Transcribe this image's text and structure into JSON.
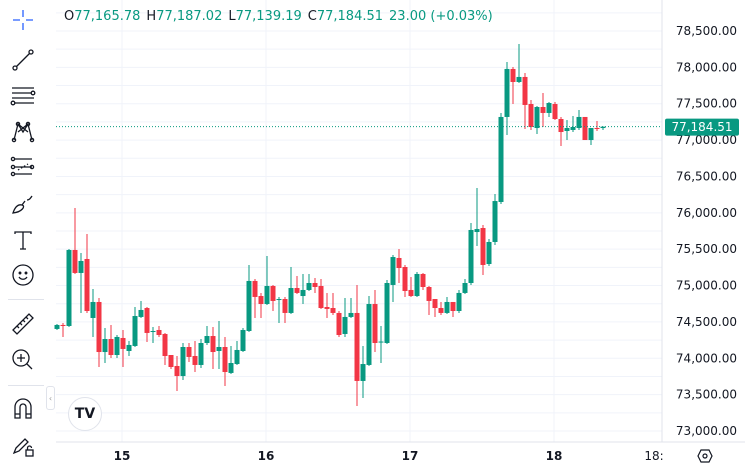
{
  "legend": {
    "o_label": "O",
    "o": "77,165.78",
    "h_label": "H",
    "h": "77,187.02",
    "l_label": "L",
    "l": "77,139.19",
    "c_label": "C",
    "c": "77,184.51",
    "change": "23.00 (+0.03%)"
  },
  "colors": {
    "up": "#089981",
    "down": "#f23645",
    "grid": "#f0f3fa",
    "text": "#131722"
  },
  "toolbar": {
    "items": [
      "crosshair-icon",
      "trend-line-icon",
      "fib-retracement-icon",
      "pattern-icon",
      "forecast-icon",
      "brush-icon",
      "text-icon",
      "emoji-icon",
      "ruler-icon",
      "zoom-in-icon",
      "magnet-icon",
      "lock-drawings-icon"
    ]
  },
  "logo_text": "TV",
  "chart_data": {
    "type": "candlestick",
    "ylim": [
      72850,
      78700
    ],
    "y_ticks": [
      "78,500.00",
      "78,000.00",
      "77,500.00",
      "77,000.00",
      "76,500.00",
      "76,000.00",
      "75,500.00",
      "75,000.00",
      "74,500.00",
      "74,000.00",
      "73,500.00",
      "73,000.00"
    ],
    "y_tick_values": [
      78500,
      78000,
      77500,
      77000,
      76500,
      76000,
      75500,
      75000,
      74500,
      74000,
      73500,
      73000
    ],
    "x_ticks": [
      "15",
      "16",
      "17",
      "18",
      "18:"
    ],
    "interval": "1h",
    "first_candle_offset_hours_before_15": 11,
    "last_price": 77184.51,
    "last_price_label": "77,184.51",
    "ohlc": [
      [
        74403,
        74471,
        74389,
        74458
      ],
      [
        74458,
        74485,
        74293,
        74444
      ],
      [
        74444,
        75502,
        74430,
        75489
      ],
      [
        75489,
        76066,
        75159,
        75173
      ],
      [
        75173,
        75447,
        74623,
        75338
      ],
      [
        75365,
        75709,
        74623,
        74650
      ],
      [
        74554,
        74953,
        74293,
        74774
      ],
      [
        74774,
        74829,
        73880,
        74086
      ],
      [
        74086,
        74416,
        73935,
        74265
      ],
      [
        74265,
        74458,
        74004,
        74045
      ],
      [
        74045,
        74320,
        74004,
        74293
      ],
      [
        74279,
        74389,
        73880,
        74128
      ],
      [
        74100,
        74238,
        74031,
        74183
      ],
      [
        74169,
        74705,
        74155,
        74581
      ],
      [
        74568,
        74788,
        74554,
        74664
      ],
      [
        74691,
        74705,
        74224,
        74348
      ],
      [
        74361,
        74430,
        74210,
        74375
      ],
      [
        74389,
        74444,
        74293,
        74320
      ],
      [
        74334,
        74348,
        73908,
        74031
      ],
      [
        74045,
        74045,
        73853,
        73880
      ],
      [
        73894,
        74031,
        73550,
        73756
      ],
      [
        73756,
        74210,
        73701,
        74155
      ],
      [
        74155,
        74210,
        73948,
        74018
      ],
      [
        74031,
        74238,
        73811,
        73908
      ],
      [
        73908,
        74265,
        73866,
        74210
      ],
      [
        74210,
        74444,
        74183,
        74306
      ],
      [
        74306,
        74430,
        73853,
        74086
      ],
      [
        74100,
        74513,
        73853,
        74155
      ],
      [
        74155,
        74293,
        73619,
        73811
      ],
      [
        73798,
        74169,
        73784,
        73935
      ],
      [
        73921,
        74238,
        73908,
        74114
      ],
      [
        74100,
        74416,
        74086,
        74389
      ],
      [
        74375,
        75283,
        74361,
        75063
      ],
      [
        75063,
        75090,
        74554,
        74843
      ],
      [
        74856,
        74898,
        74554,
        74746
      ],
      [
        74746,
        75406,
        74732,
        74994
      ],
      [
        74994,
        75008,
        74650,
        74788
      ],
      [
        74801,
        74843,
        74485,
        74815
      ],
      [
        74815,
        74843,
        74485,
        74623
      ],
      [
        74623,
        75255,
        74609,
        74966
      ],
      [
        74966,
        75131,
        74884,
        74898
      ],
      [
        74856,
        75159,
        74746,
        74939
      ],
      [
        74939,
        75159,
        74925,
        75035
      ],
      [
        75035,
        75104,
        74898,
        74980
      ],
      [
        74994,
        75090,
        74678,
        74691
      ],
      [
        74705,
        74898,
        74554,
        74678
      ],
      [
        74691,
        74898,
        74595,
        74623
      ],
      [
        74623,
        74650,
        74293,
        74320
      ],
      [
        74334,
        74829,
        74293,
        74568
      ],
      [
        74568,
        74829,
        74554,
        74623
      ],
      [
        74623,
        75008,
        73344,
        73688
      ],
      [
        73688,
        74169,
        73454,
        73921
      ],
      [
        73908,
        74856,
        73894,
        74746
      ],
      [
        74746,
        74939,
        74086,
        74210
      ],
      [
        74224,
        74444,
        73935,
        74230
      ],
      [
        74210,
        75076,
        74196,
        75035
      ],
      [
        75008,
        75420,
        74774,
        75392
      ],
      [
        75379,
        75502,
        75035,
        75241
      ],
      [
        75255,
        75283,
        74843,
        74925
      ],
      [
        74939,
        75118,
        74843,
        74856
      ],
      [
        74856,
        75186,
        74843,
        75159
      ],
      [
        75159,
        75173,
        74939,
        74980
      ],
      [
        74980,
        74994,
        74595,
        74788
      ],
      [
        74815,
        74815,
        74568,
        74691
      ],
      [
        74691,
        74774,
        74595,
        74623
      ],
      [
        74623,
        74843,
        74609,
        74774
      ],
      [
        74774,
        74774,
        74568,
        74650
      ],
      [
        74650,
        74939,
        74623,
        74898
      ],
      [
        74898,
        75090,
        74884,
        75035
      ],
      [
        75035,
        75860,
        75008,
        75764
      ],
      [
        75736,
        76341,
        75544,
        75777
      ],
      [
        75791,
        75832,
        75145,
        75283
      ],
      [
        75296,
        75640,
        75269,
        75599
      ],
      [
        75599,
        76258,
        75557,
        76162
      ],
      [
        76149,
        77373,
        76121,
        77318
      ],
      [
        77318,
        78074,
        77070,
        77978
      ],
      [
        77978,
        78005,
        77496,
        77799
      ],
      [
        77799,
        78321,
        77785,
        77868
      ],
      [
        77868,
        77923,
        77153,
        77483
      ],
      [
        77496,
        77551,
        77139,
        77180
      ],
      [
        77166,
        77469,
        77084,
        77455
      ],
      [
        77455,
        77648,
        77180,
        77373
      ],
      [
        77373,
        77524,
        77318,
        77510
      ],
      [
        77496,
        77524,
        77276,
        77290
      ],
      [
        77290,
        77318,
        76919,
        77111
      ],
      [
        77125,
        77276,
        77001,
        77166
      ],
      [
        77139,
        77331,
        77111,
        77180
      ],
      [
        77166,
        77414,
        77139,
        77318
      ],
      [
        77318,
        77318,
        77001,
        77001
      ],
      [
        77001,
        77166,
        76932,
        77166
      ],
      [
        77166,
        77263,
        77125,
        77153
      ],
      [
        77165.78,
        77187.02,
        77139.19,
        77184.51
      ]
    ]
  }
}
